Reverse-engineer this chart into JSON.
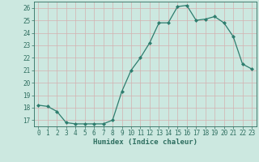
{
  "x": [
    0,
    1,
    2,
    3,
    4,
    5,
    6,
    7,
    8,
    9,
    10,
    11,
    12,
    13,
    14,
    15,
    16,
    17,
    18,
    19,
    20,
    21,
    22,
    23
  ],
  "y": [
    18.2,
    18.1,
    17.7,
    16.8,
    16.7,
    16.7,
    16.7,
    16.7,
    17.0,
    19.3,
    21.0,
    22.0,
    23.2,
    24.8,
    24.8,
    26.1,
    26.2,
    25.0,
    25.1,
    25.3,
    24.8,
    23.7,
    21.5,
    21.1
  ],
  "line_color": "#2e7d6e",
  "marker": "D",
  "marker_size": 2.0,
  "bg_color": "#cce8e0",
  "grid_color": "#b0d0c8",
  "grid_red_color": "#d4b0b0",
  "xlabel": "Humidex (Indice chaleur)",
  "ylim": [
    16.5,
    26.5
  ],
  "xlim": [
    -0.5,
    23.5
  ],
  "yticks": [
    17,
    18,
    19,
    20,
    21,
    22,
    23,
    24,
    25,
    26
  ],
  "xticks": [
    0,
    1,
    2,
    3,
    4,
    5,
    6,
    7,
    8,
    9,
    10,
    11,
    12,
    13,
    14,
    15,
    16,
    17,
    18,
    19,
    20,
    21,
    22,
    23
  ],
  "tick_label_color": "#2e6e60",
  "label_fontsize": 6.5,
  "tick_fontsize": 5.5
}
